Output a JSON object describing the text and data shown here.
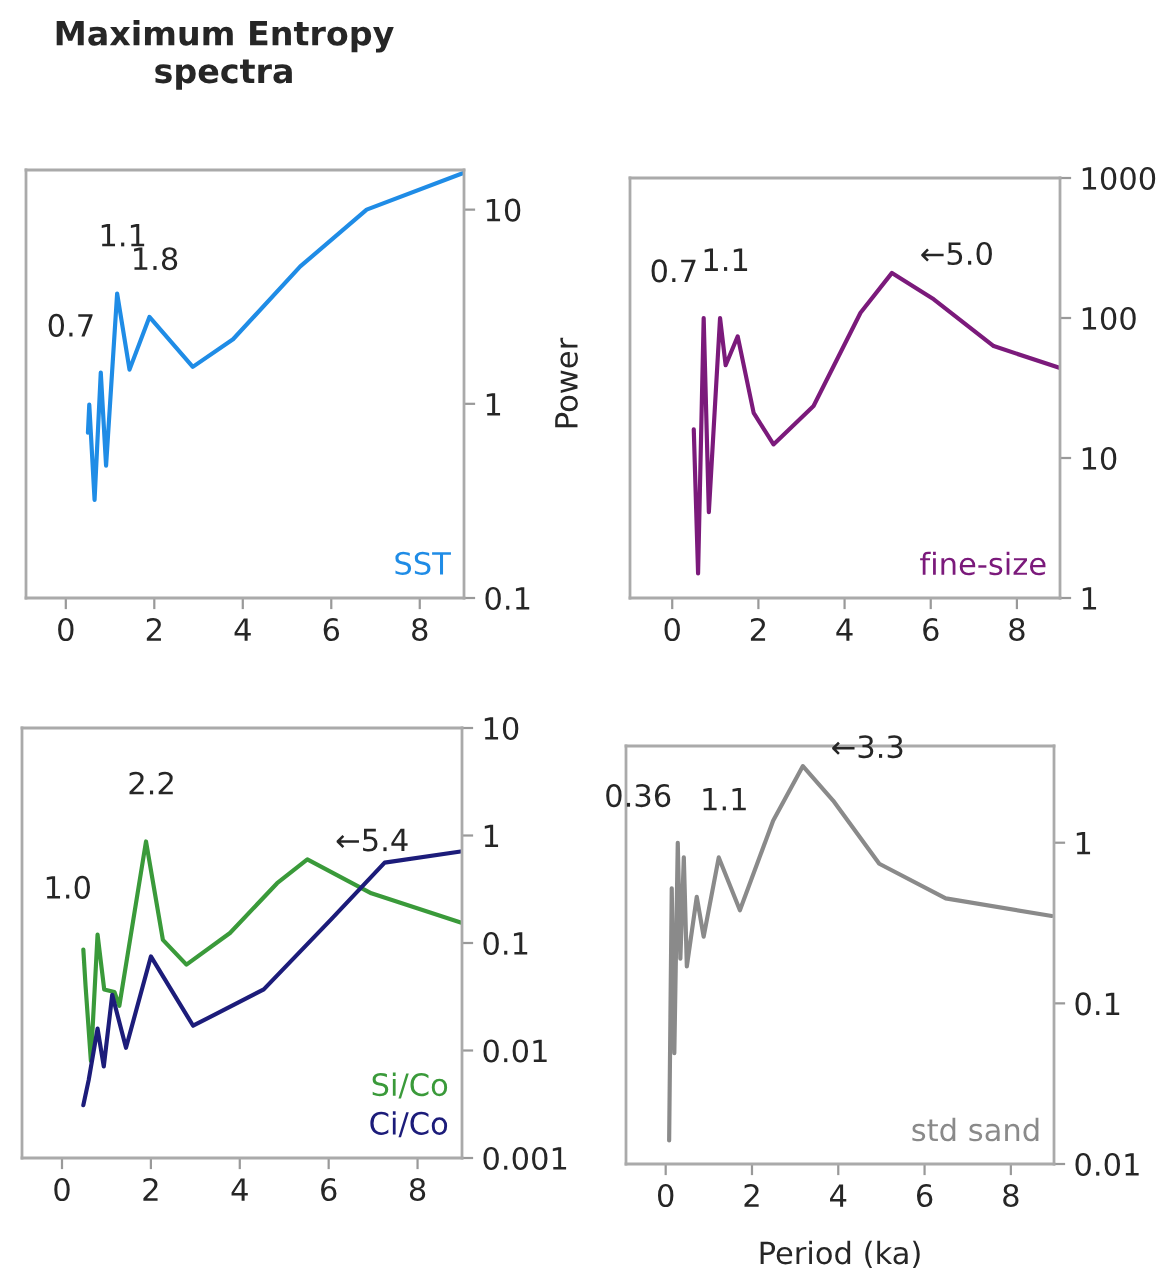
{
  "chart_data": [
    {
      "type": "line",
      "title": "Maximum Entropy\nspectra",
      "ylabel": "Power",
      "log": "y",
      "xlim": [
        -0.9,
        9
      ],
      "ylim": [
        0.1,
        16
      ],
      "xticks": [
        0,
        2,
        4,
        6,
        8
      ],
      "yticks": [
        0.1,
        1,
        10
      ],
      "grid": false,
      "legend": "bottom right",
      "series": [
        {
          "name": "SST",
          "color": "#1f8ce6",
          "x": [
            0.5,
            0.53,
            0.65,
            0.79,
            0.91,
            1.16,
            1.44,
            1.89,
            2.87,
            3.78,
            5.3,
            6.8,
            9.0
          ],
          "values": [
            0.71,
            0.99,
            0.32,
            1.45,
            0.48,
            3.7,
            1.5,
            2.8,
            1.55,
            2.15,
            5.1,
            10,
            15.5
          ]
        }
      ],
      "annotations": [
        {
          "text": "0.7",
          "x": 0.79,
          "y": 1.45
        },
        {
          "text": "1.1",
          "x": 1.16,
          "y": 3.7
        },
        {
          "text": "1.8",
          "x": 1.89,
          "y": 2.8
        }
      ]
    },
    {
      "type": "line",
      "log": "y",
      "xlim": [
        -0.98,
        9
      ],
      "ylim": [
        1,
        1000
      ],
      "xticks": [
        0,
        2,
        4,
        6,
        8
      ],
      "yticks": [
        1,
        10,
        100,
        1000
      ],
      "grid": false,
      "legend": "bottom right",
      "series": [
        {
          "name": "fine-size",
          "color": "#7b1a7b",
          "x": [
            0.5,
            0.6,
            0.73,
            0.85,
            1.11,
            1.24,
            1.52,
            1.89,
            2.35,
            3.28,
            4.37,
            5.1,
            6.07,
            7.46,
            9.0
          ],
          "values": [
            16,
            1.5,
            100,
            4.1,
            100,
            46,
            74,
            21,
            12.5,
            23.5,
            109,
            210,
            136,
            63,
            44
          ]
        }
      ],
      "annotations": [
        {
          "text": "0.7",
          "x": 0.73,
          "y": 100
        },
        {
          "text": "1.1",
          "x": 1.11,
          "y": 100
        },
        {
          "text": "←5.0",
          "x": 5.1,
          "y": 210
        }
      ]
    },
    {
      "type": "line",
      "log": "y",
      "xlim": [
        -0.9,
        9
      ],
      "ylim": [
        0.001,
        10
      ],
      "xticks": [
        0,
        2,
        4,
        6,
        8
      ],
      "yticks": [
        0.001,
        0.01,
        0.1,
        1,
        10
      ],
      "grid": false,
      "legend": "bottom right",
      "series": [
        {
          "name": "Si/Co",
          "color": "#3a9a3a",
          "x": [
            0.48,
            0.53,
            0.65,
            0.8,
            0.95,
            1.18,
            1.29,
            1.89,
            2.27,
            2.8,
            3.78,
            4.84,
            5.52,
            6.96,
            8.97
          ],
          "values": [
            0.087,
            0.04,
            0.008,
            0.12,
            0.037,
            0.035,
            0.026,
            0.88,
            0.107,
            0.063,
            0.124,
            0.36,
            0.6,
            0.29,
            0.155
          ]
        },
        {
          "name": "Ci/Co",
          "color": "#1c1c7a",
          "x": [
            0.48,
            0.6,
            0.8,
            0.94,
            1.13,
            1.44,
            2.0,
            2.95,
            4.54,
            6.05,
            7.26,
            8.97
          ],
          "values": [
            0.0031,
            0.0053,
            0.016,
            0.0071,
            0.033,
            0.0106,
            0.075,
            0.017,
            0.037,
            0.165,
            0.56,
            0.71
          ]
        }
      ],
      "annotations": [
        {
          "text": "1.0",
          "x": 0.8,
          "y": 0.12
        },
        {
          "text": "2.2",
          "x": 1.89,
          "y": 0.88
        },
        {
          "text": "←5.4",
          "x": 5.52,
          "y": 0.6
        }
      ]
    },
    {
      "type": "line",
      "xlabel": "Period (ka)",
      "log": "y",
      "xlim": [
        -0.92,
        9
      ],
      "ylim": [
        0.01,
        4
      ],
      "xticks": [
        0,
        2,
        4,
        6,
        8
      ],
      "yticks": [
        0.01,
        0.1,
        1
      ],
      "grid": false,
      "legend": "bottom right",
      "series": [
        {
          "name": "std sand",
          "color": "#8a8a8a",
          "x": [
            0.08,
            0.14,
            0.2,
            0.28,
            0.34,
            0.42,
            0.49,
            0.72,
            0.88,
            1.23,
            1.72,
            2.49,
            3.18,
            3.88,
            4.95,
            6.49,
            8.95
          ],
          "values": [
            0.014,
            0.52,
            0.049,
            1.0,
            0.19,
            0.81,
            0.17,
            0.46,
            0.26,
            0.81,
            0.38,
            1.37,
            3.0,
            1.83,
            0.74,
            0.45,
            0.35
          ]
        }
      ],
      "annotations": [
        {
          "text": "0.36",
          "x": 0.28,
          "y": 1.0
        },
        {
          "text": "1.1",
          "x": 1.23,
          "y": 0.81
        },
        {
          "text": "←3.3",
          "x": 3.18,
          "y": 3.0
        }
      ]
    }
  ]
}
